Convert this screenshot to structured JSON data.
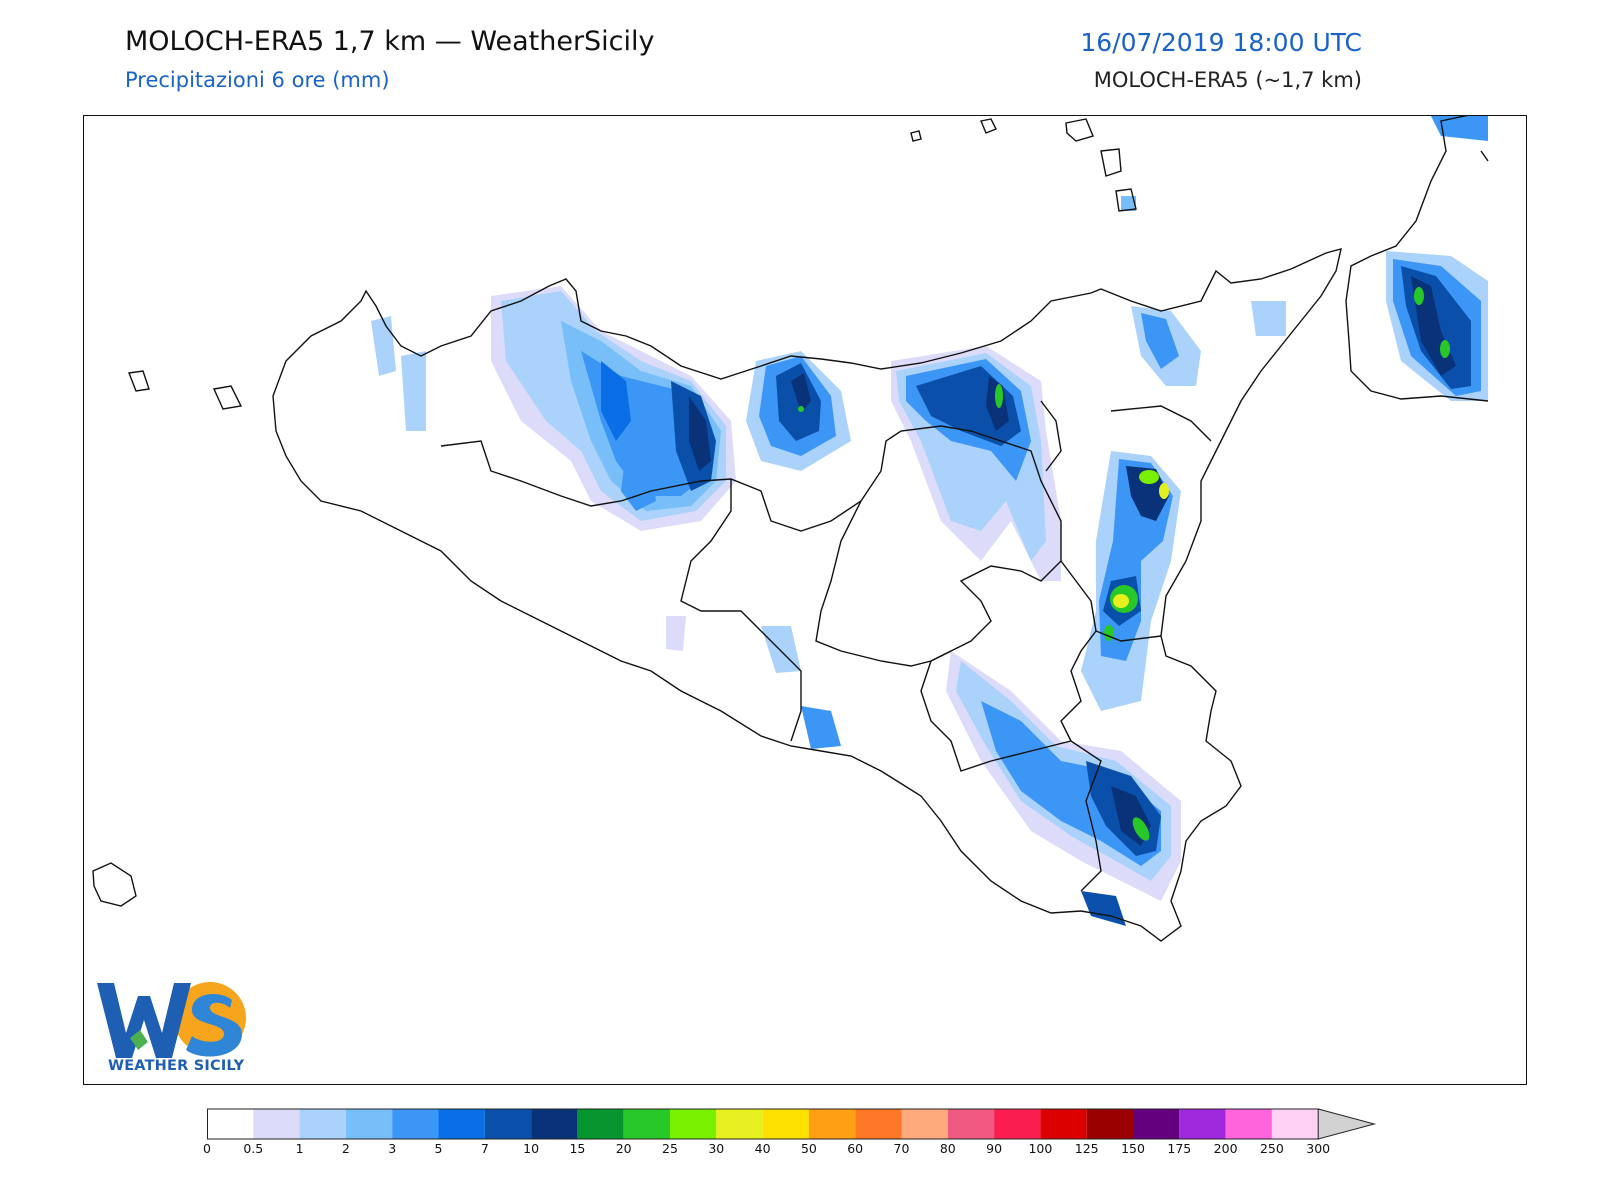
{
  "header": {
    "title": "MOLOCH-ERA5 1,7 km — WeatherSicily",
    "subtitle": "Precipitazioni 6 ore (mm)",
    "datetime": "16/07/2019 18:00 UTC",
    "model": "MOLOCH-ERA5 (~1,7 km)"
  },
  "logo": {
    "letters": "WS",
    "text": "WEATHER SICILY"
  },
  "legend": {
    "ticks": [
      "0",
      "0.5",
      "1",
      "2",
      "3",
      "5",
      "7",
      "10",
      "15",
      "20",
      "25",
      "30",
      "40",
      "50",
      "60",
      "70",
      "80",
      "90",
      "100",
      "125",
      "150",
      "175",
      "200",
      "250",
      "300"
    ],
    "colors": [
      "#ffffff",
      "#dcdcfa",
      "#aad2fa",
      "#78bef8",
      "#3c96f5",
      "#0a6ee6",
      "#0a50aa",
      "#0a3278",
      "#06962d",
      "#28c828",
      "#78f000",
      "#e6f01e",
      "#ffe100",
      "#ffa014",
      "#ff7828",
      "#ffaa7d",
      "#f05a82",
      "#fa1e50",
      "#dc0000",
      "#9b0000",
      "#64007d",
      "#a028dc",
      "#ff64dc",
      "#ffd2f5"
    ],
    "overflow_color": "#d2d2d2"
  }
}
